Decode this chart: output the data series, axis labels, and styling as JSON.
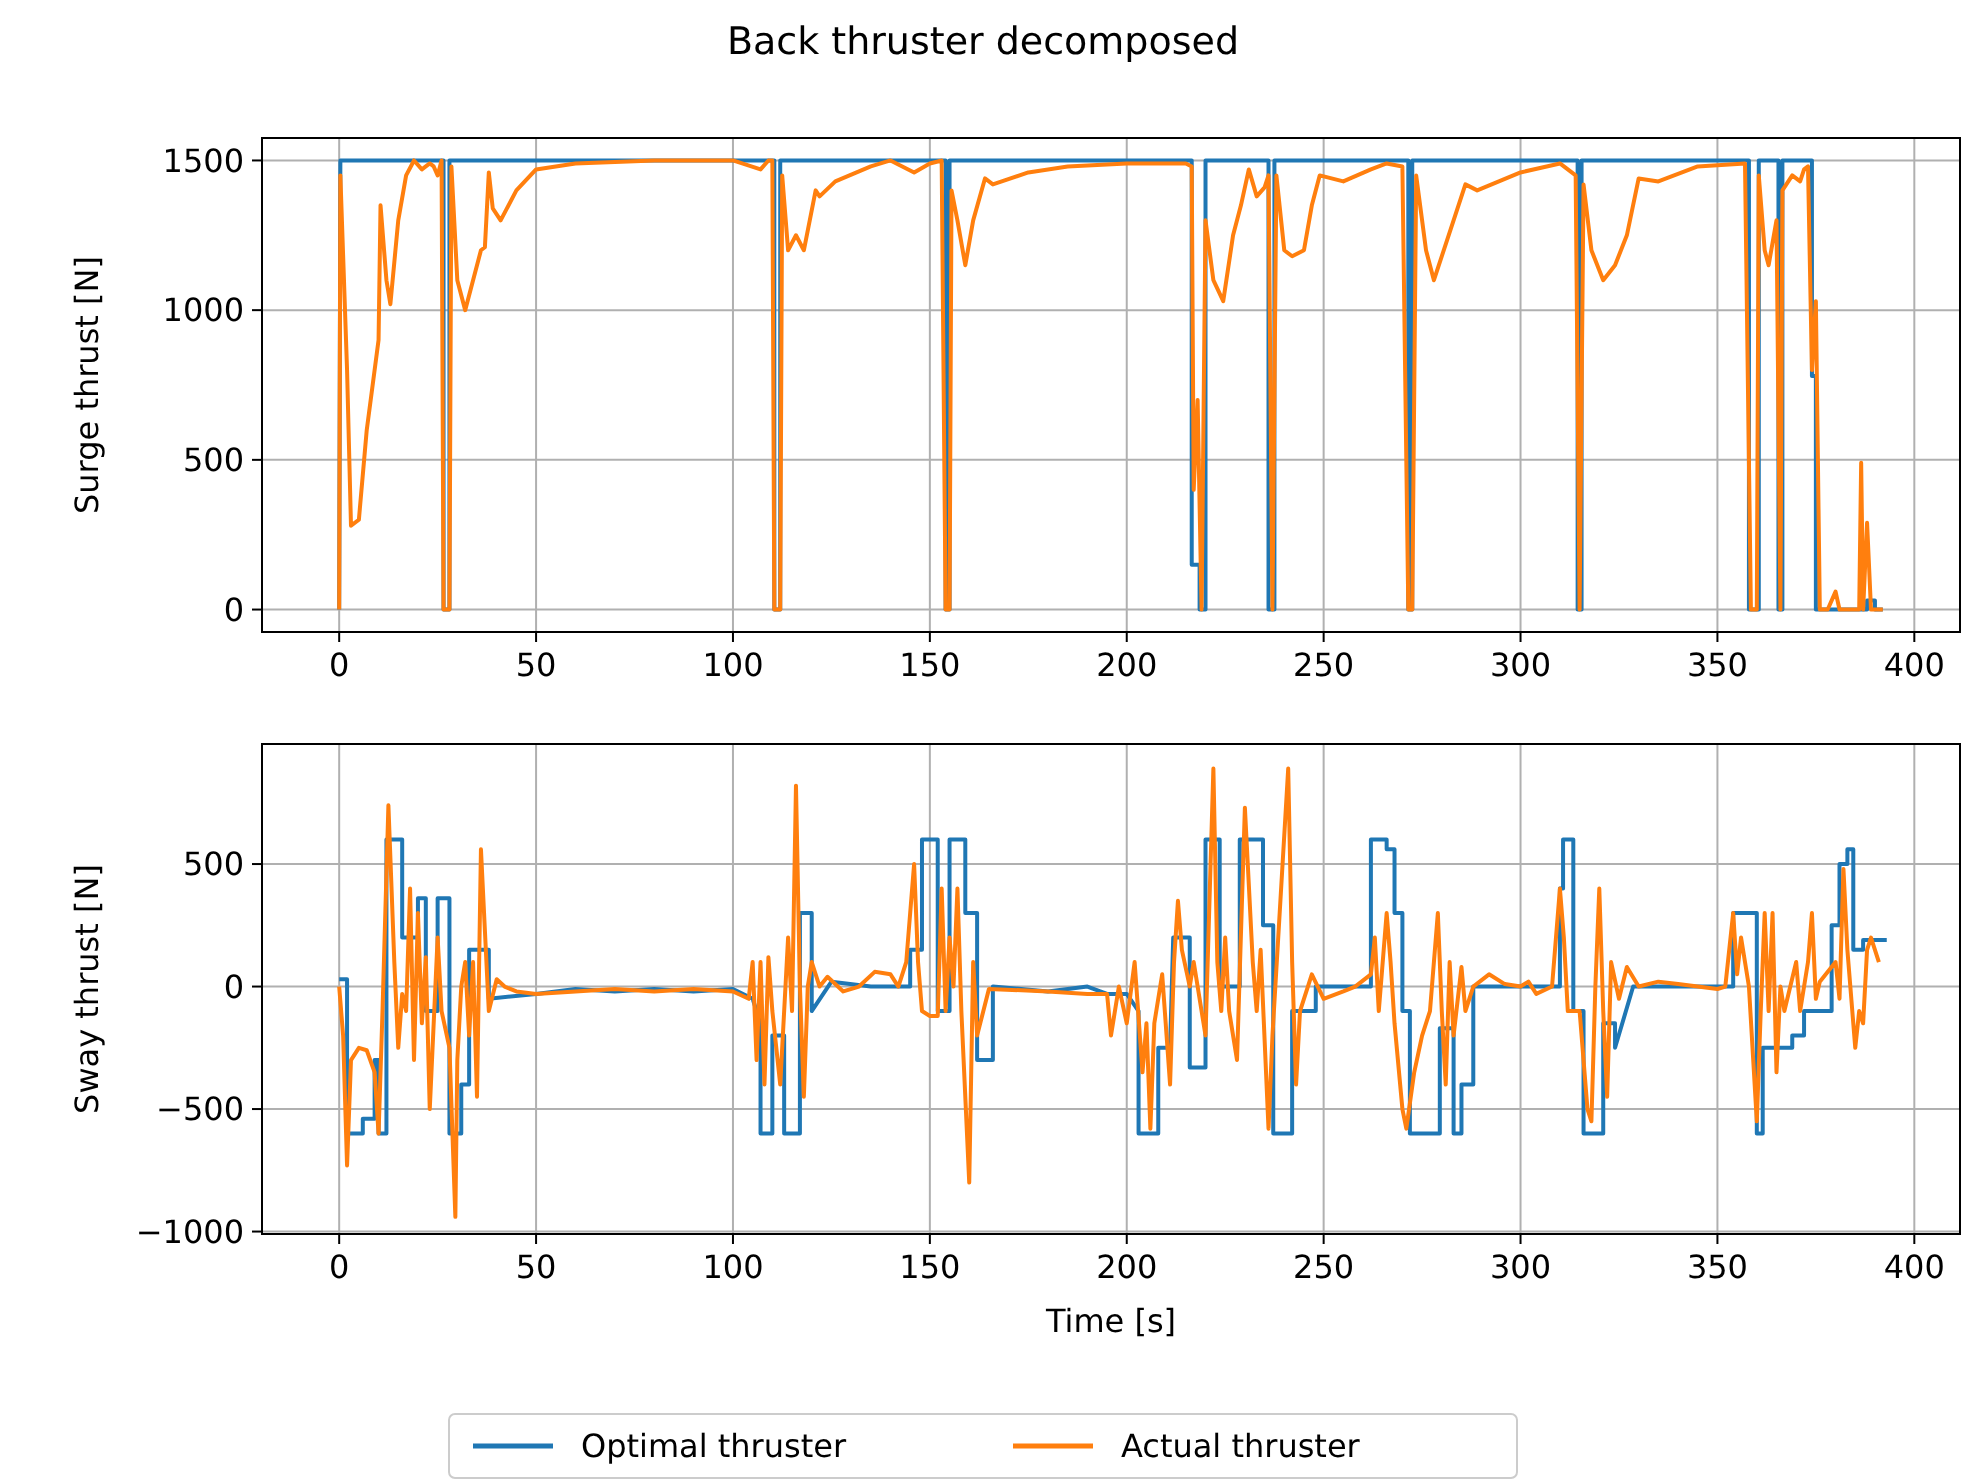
{
  "chart_data": [
    {
      "type": "line",
      "title": "Back thruster decomposed",
      "ylabel": "Surge thrust [N]",
      "xlim": [
        -19.6,
        411.6
      ],
      "ylim": [
        -75,
        1575
      ],
      "xticks": [
        0,
        50,
        100,
        150,
        200,
        250,
        300,
        350,
        400
      ],
      "yticks": [
        0,
        500,
        1000,
        1500
      ],
      "grid": true,
      "legend": false,
      "series": [
        {
          "color": "#1f77b4",
          "x": [
            0,
            0.3,
            26.5,
            26.5,
            28,
            28,
            110.5,
            110.5,
            112,
            112,
            154,
            154,
            155,
            155,
            216.5,
            216.5,
            218.5,
            218.5,
            220,
            220,
            236,
            236,
            237.5,
            237.5,
            271.5,
            271.5,
            272.5,
            272.5,
            314.5,
            314.5,
            315.5,
            315.5,
            358,
            358,
            360.5,
            360.5,
            365.5,
            365.5,
            366.5,
            366.5,
            374,
            374,
            375,
            375,
            388,
            388,
            390,
            390,
            392
          ],
          "values": [
            0,
            1500,
            1500,
            0,
            0,
            1500,
            1500,
            0,
            0,
            1500,
            1500,
            0,
            0,
            1500,
            1500,
            150,
            150,
            0,
            0,
            1500,
            1500,
            0,
            0,
            1500,
            1500,
            0,
            0,
            1500,
            1500,
            0,
            0,
            1500,
            1500,
            0,
            0,
            1500,
            1500,
            0,
            0,
            1500,
            1500,
            780,
            780,
            0,
            0,
            30,
            30,
            0,
            0
          ]
        },
        {
          "color": "#ff7f0e",
          "x": [
            0,
            0.3,
            2,
            3,
            5,
            7,
            9,
            10,
            10.5,
            12,
            13,
            15,
            17,
            19,
            21,
            23,
            24,
            25,
            26,
            26.5,
            28,
            28.5,
            30,
            32,
            34,
            36,
            37,
            38,
            39,
            41,
            45,
            50,
            60,
            80,
            100,
            107,
            109,
            110,
            110.5,
            112,
            112.5,
            114,
            116,
            118,
            121,
            122,
            126,
            135,
            140,
            146,
            150,
            153,
            154,
            155,
            155.5,
            157,
            159,
            161,
            164,
            166,
            175,
            185,
            200,
            210,
            215,
            216.5,
            217,
            218,
            219,
            220,
            222,
            224.5,
            227,
            229,
            231,
            233,
            235,
            236,
            237,
            238,
            240,
            242,
            245,
            247,
            249,
            255,
            262,
            266,
            270,
            271.5,
            272.5,
            273.5,
            276,
            278,
            283,
            286,
            289,
            300,
            310,
            314,
            315,
            316,
            318,
            321,
            324,
            327,
            330,
            335,
            345,
            357,
            358.5,
            360,
            360.5,
            362,
            363,
            365,
            366,
            366.5,
            369,
            371,
            372,
            373,
            374,
            375,
            376,
            378,
            380,
            381,
            386,
            386.5,
            387,
            388,
            389,
            392
          ],
          "values": [
            0,
            1450,
            800,
            280,
            300,
            600,
            800,
            900,
            1350,
            1100,
            1020,
            1300,
            1450,
            1500,
            1470,
            1490,
            1480,
            1450,
            1500,
            0,
            0,
            1480,
            1100,
            1000,
            1100,
            1200,
            1210,
            1460,
            1340,
            1300,
            1400,
            1470,
            1490,
            1500,
            1500,
            1470,
            1500,
            1500,
            0,
            0,
            1450,
            1200,
            1250,
            1200,
            1400,
            1380,
            1430,
            1480,
            1500,
            1460,
            1490,
            1500,
            0,
            0,
            1400,
            1300,
            1150,
            1300,
            1440,
            1420,
            1460,
            1480,
            1490,
            1490,
            1490,
            1480,
            400,
            700,
            0,
            1300,
            1100,
            1030,
            1250,
            1350,
            1470,
            1380,
            1410,
            1450,
            0,
            1450,
            1200,
            1180,
            1200,
            1350,
            1450,
            1430,
            1470,
            1490,
            1480,
            0,
            0,
            1450,
            1200,
            1100,
            1300,
            1420,
            1400,
            1460,
            1490,
            1450,
            0,
            1420,
            1200,
            1100,
            1150,
            1250,
            1440,
            1430,
            1480,
            1490,
            0,
            0,
            1450,
            1200,
            1150,
            1300,
            0,
            1400,
            1450,
            1430,
            1470,
            1480,
            800,
            1030,
            0,
            0,
            60,
            0,
            0,
            490,
            0,
            290,
            0,
            0
          ]
        }
      ]
    },
    {
      "type": "line",
      "xlabel": "Time [s]",
      "ylabel": "Sway thrust [N]",
      "xlim": [
        -19.6,
        411.6
      ],
      "ylim": [
        -1010,
        990
      ],
      "xticks": [
        0,
        50,
        100,
        150,
        200,
        250,
        300,
        350,
        400
      ],
      "yticks": [
        {
          "value": -1000,
          "label": "−1000"
        },
        {
          "value": -500,
          "label": "−500"
        },
        0,
        500
      ],
      "grid": true,
      "legend": "bottom",
      "series": [
        {
          "name": "Optimal thruster",
          "color": "#1f77b4",
          "x": [
            0,
            2,
            2,
            6,
            6,
            9,
            9,
            10,
            10,
            12,
            12,
            16,
            16,
            20,
            20,
            22,
            22,
            25,
            25,
            28,
            28,
            31,
            31,
            33,
            33,
            38,
            38,
            50,
            60,
            70,
            80,
            90,
            100,
            105,
            107,
            107,
            110,
            110,
            113,
            113,
            117,
            117,
            120,
            120,
            125,
            135,
            145,
            145,
            148,
            148,
            152,
            152,
            155,
            155,
            159,
            159,
            162,
            162,
            166,
            166,
            180,
            190,
            195,
            200,
            203,
            203,
            208,
            208,
            211,
            211.8,
            216,
            216,
            220,
            220,
            223.6,
            223.6,
            228.7,
            228.7,
            234.6,
            234.6,
            237.2,
            237.2,
            242,
            242,
            248,
            248,
            262,
            262,
            266,
            266,
            268,
            268,
            270,
            270,
            271.9,
            271.9,
            279.5,
            279.5,
            283,
            283,
            285,
            285,
            288,
            288,
            308,
            310,
            310,
            310.8,
            310.8,
            313.4,
            313.4,
            316,
            316,
            321,
            321,
            324,
            324,
            328.6,
            352,
            354,
            354,
            360,
            360,
            361.5,
            361.5,
            369,
            369,
            372,
            372,
            379,
            379,
            381,
            381,
            383,
            383,
            384.5,
            384.5,
            387,
            387,
            393
          ],
          "values": [
            30,
            30,
            -600,
            -600,
            -540,
            -540,
            -300,
            -300,
            -600,
            -600,
            600,
            600,
            200,
            200,
            360,
            360,
            -100,
            -100,
            360,
            360,
            -600,
            -600,
            -400,
            -400,
            150,
            150,
            -50,
            -30,
            -10,
            -20,
            -10,
            -20,
            -10,
            -50,
            -150,
            -600,
            -600,
            -200,
            -200,
            -600,
            -600,
            300,
            300,
            -100,
            20,
            0,
            0,
            150,
            150,
            600,
            600,
            -100,
            -100,
            600,
            600,
            300,
            300,
            -300,
            -300,
            0,
            -20,
            0,
            -30,
            -30,
            -100,
            -600,
            -600,
            -250,
            -250,
            200,
            200,
            -330,
            -330,
            600,
            600,
            0,
            0,
            600,
            600,
            250,
            250,
            -600,
            -600,
            -100,
            -100,
            0,
            0,
            600,
            600,
            560,
            560,
            300,
            300,
            -100,
            -100,
            -600,
            -600,
            -170,
            -170,
            -600,
            -600,
            -400,
            -400,
            0,
            0,
            0,
            400,
            400,
            600,
            600,
            -100,
            -100,
            -600,
            -600,
            -150,
            -150,
            -250,
            0,
            0,
            0,
            300,
            300,
            -600,
            -600,
            -250,
            -250,
            -200,
            -200,
            -100,
            -100,
            250,
            250,
            500,
            500,
            560,
            560,
            150,
            150,
            190,
            190
          ]
        },
        {
          "name": "Actual thruster",
          "color": "#ff7f0e",
          "x": [
            0,
            1,
            2,
            3,
            5,
            7,
            9,
            10,
            11,
            12.5,
            14,
            15,
            16,
            17,
            18,
            19,
            20,
            21,
            22,
            23,
            25,
            26,
            28,
            29.5,
            30,
            31,
            32,
            33,
            34,
            35,
            36,
            38,
            40,
            42,
            45,
            50,
            60,
            70,
            80,
            90,
            100,
            104,
            105,
            106,
            107,
            108,
            109,
            110,
            112,
            113,
            114,
            115,
            116,
            117,
            118,
            119,
            120,
            122,
            124,
            128,
            132,
            136,
            140,
            142,
            144,
            146,
            147,
            148,
            150,
            152,
            153,
            154,
            155,
            156,
            157,
            158,
            160,
            161,
            162,
            165,
            180,
            190,
            195,
            196,
            198,
            200,
            202,
            204,
            205,
            206,
            207,
            209,
            211,
            212,
            213,
            214,
            216,
            217,
            219,
            220,
            222,
            223,
            224,
            225,
            226,
            228,
            230,
            232,
            233,
            234,
            236,
            237,
            241,
            242,
            243,
            244,
            247,
            250,
            255,
            258,
            262,
            263,
            264,
            266,
            267,
            268,
            270,
            271,
            273,
            275,
            277,
            279,
            280,
            281,
            282,
            283,
            285,
            286,
            288,
            292,
            296,
            300,
            302,
            304,
            308,
            310,
            311,
            312,
            315,
            317,
            318,
            319,
            320,
            321,
            322,
            323,
            325,
            327,
            330,
            335,
            340,
            345,
            350,
            352,
            354,
            355,
            356,
            358,
            360,
            361,
            362,
            363,
            364,
            365,
            366,
            367,
            370,
            371,
            373,
            374,
            375,
            376,
            380,
            381,
            382,
            383,
            385,
            386,
            387,
            388,
            389,
            390,
            391
          ],
          "values": [
            0,
            -200,
            -730,
            -300,
            -250,
            -260,
            -350,
            -600,
            -100,
            740,
            100,
            -250,
            -30,
            -100,
            400,
            -300,
            300,
            -150,
            120,
            -500,
            200,
            -100,
            -250,
            -940,
            -300,
            0,
            100,
            -200,
            100,
            -450,
            560,
            -100,
            30,
            0,
            -20,
            -30,
            -20,
            -10,
            -20,
            -10,
            -20,
            -50,
            100,
            -300,
            100,
            -400,
            120,
            -100,
            -400,
            -100,
            200,
            -100,
            820,
            0,
            -450,
            0,
            100,
            0,
            40,
            -20,
            0,
            60,
            50,
            0,
            100,
            500,
            100,
            -100,
            -120,
            -120,
            400,
            -100,
            200,
            0,
            400,
            -100,
            -800,
            100,
            -200,
            -10,
            -20,
            -30,
            -30,
            -200,
            0,
            -150,
            100,
            -350,
            -150,
            -580,
            -150,
            50,
            -400,
            100,
            350,
            150,
            0,
            100,
            -100,
            -200,
            890,
            100,
            -100,
            200,
            -100,
            -300,
            730,
            100,
            -100,
            150,
            -580,
            -200,
            890,
            100,
            -400,
            -100,
            50,
            -50,
            -20,
            0,
            50,
            200,
            -100,
            300,
            100,
            -150,
            -500,
            -580,
            -350,
            -200,
            -100,
            300,
            -100,
            -400,
            100,
            -200,
            80,
            -100,
            0,
            50,
            10,
            0,
            20,
            -30,
            0,
            400,
            200,
            -100,
            -100,
            -500,
            -550,
            0,
            400,
            -100,
            -450,
            100,
            -50,
            80,
            0,
            20,
            10,
            0,
            -10,
            0,
            300,
            50,
            200,
            0,
            -550,
            -100,
            300,
            -100,
            300,
            -350,
            0,
            -100,
            100,
            -100,
            100,
            300,
            -50,
            20,
            100,
            -50,
            480,
            150,
            -250,
            -100,
            -150,
            150,
            200,
            150,
            100
          ]
        }
      ]
    }
  ]
}
